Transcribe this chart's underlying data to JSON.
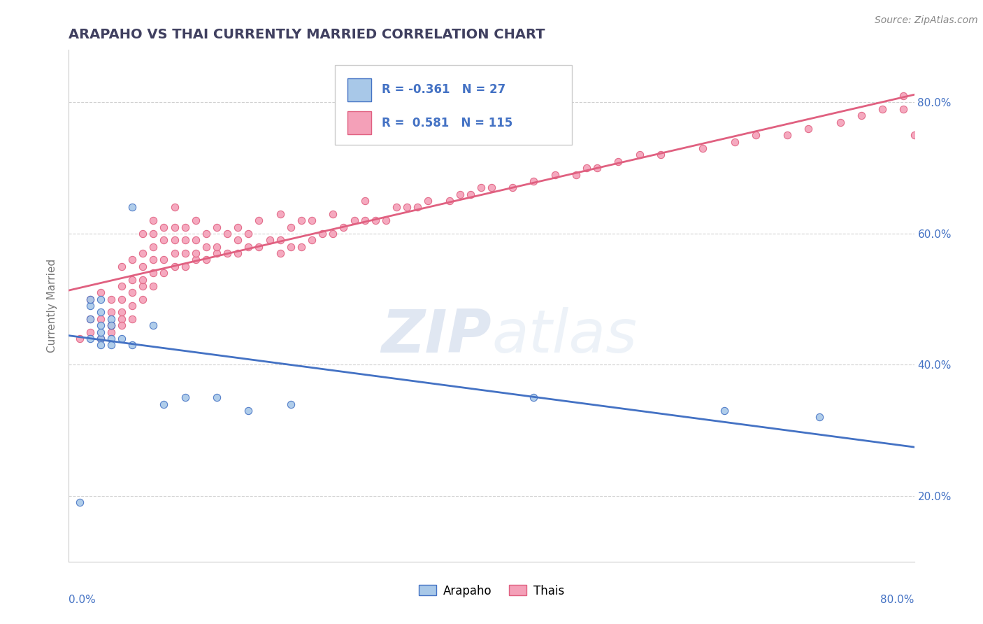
{
  "title": "ARAPAHO VS THAI CURRENTLY MARRIED CORRELATION CHART",
  "source_text": "Source: ZipAtlas.com",
  "ylabel": "Currently Married",
  "watermark_zip": "ZIP",
  "watermark_atlas": "atlas",
  "arapaho_R": -0.361,
  "arapaho_N": 27,
  "thai_R": 0.581,
  "thai_N": 115,
  "arapaho_color": "#a8c8e8",
  "thai_color": "#f4a0b8",
  "arapaho_line_color": "#4472c4",
  "thai_line_color": "#e06080",
  "title_color": "#404060",
  "legend_text_color": "#4472c4",
  "background_color": "#ffffff",
  "grid_color": "#cccccc",
  "xmin": 0.0,
  "xmax": 0.8,
  "ymin": 0.1,
  "ymax": 0.88,
  "right_yticks": [
    0.2,
    0.4,
    0.6,
    0.8
  ],
  "right_ytick_labels": [
    "20.0%",
    "40.0%",
    "60.0%",
    "80.0%"
  ],
  "arapaho_scatter_x": [
    0.01,
    0.02,
    0.02,
    0.02,
    0.02,
    0.03,
    0.03,
    0.03,
    0.03,
    0.03,
    0.03,
    0.04,
    0.04,
    0.04,
    0.04,
    0.05,
    0.06,
    0.06,
    0.08,
    0.09,
    0.11,
    0.14,
    0.17,
    0.21,
    0.44,
    0.62,
    0.71
  ],
  "arapaho_scatter_y": [
    0.19,
    0.47,
    0.49,
    0.5,
    0.44,
    0.48,
    0.5,
    0.46,
    0.44,
    0.43,
    0.45,
    0.47,
    0.44,
    0.46,
    0.43,
    0.44,
    0.43,
    0.64,
    0.46,
    0.34,
    0.35,
    0.35,
    0.33,
    0.34,
    0.35,
    0.33,
    0.32
  ],
  "thai_scatter_x": [
    0.01,
    0.02,
    0.02,
    0.02,
    0.03,
    0.03,
    0.03,
    0.04,
    0.04,
    0.04,
    0.04,
    0.04,
    0.05,
    0.05,
    0.05,
    0.05,
    0.05,
    0.05,
    0.06,
    0.06,
    0.06,
    0.06,
    0.06,
    0.07,
    0.07,
    0.07,
    0.07,
    0.07,
    0.07,
    0.08,
    0.08,
    0.08,
    0.08,
    0.08,
    0.08,
    0.09,
    0.09,
    0.09,
    0.09,
    0.1,
    0.1,
    0.1,
    0.1,
    0.1,
    0.11,
    0.11,
    0.11,
    0.11,
    0.12,
    0.12,
    0.12,
    0.12,
    0.13,
    0.13,
    0.13,
    0.14,
    0.14,
    0.14,
    0.15,
    0.15,
    0.16,
    0.16,
    0.16,
    0.17,
    0.17,
    0.18,
    0.18,
    0.19,
    0.2,
    0.2,
    0.2,
    0.21,
    0.21,
    0.22,
    0.22,
    0.23,
    0.23,
    0.24,
    0.25,
    0.25,
    0.26,
    0.27,
    0.28,
    0.28,
    0.29,
    0.3,
    0.31,
    0.32,
    0.33,
    0.34,
    0.36,
    0.37,
    0.38,
    0.39,
    0.4,
    0.42,
    0.44,
    0.46,
    0.48,
    0.49,
    0.5,
    0.52,
    0.54,
    0.56,
    0.6,
    0.63,
    0.65,
    0.68,
    0.7,
    0.73,
    0.75,
    0.77,
    0.79,
    0.79,
    0.8
  ],
  "thai_scatter_y": [
    0.44,
    0.47,
    0.45,
    0.5,
    0.44,
    0.47,
    0.51,
    0.45,
    0.46,
    0.48,
    0.5,
    0.46,
    0.47,
    0.48,
    0.5,
    0.52,
    0.46,
    0.55,
    0.47,
    0.49,
    0.51,
    0.53,
    0.56,
    0.5,
    0.52,
    0.53,
    0.55,
    0.57,
    0.6,
    0.52,
    0.54,
    0.56,
    0.58,
    0.6,
    0.62,
    0.54,
    0.56,
    0.59,
    0.61,
    0.55,
    0.57,
    0.59,
    0.61,
    0.64,
    0.55,
    0.57,
    0.59,
    0.61,
    0.56,
    0.57,
    0.59,
    0.62,
    0.56,
    0.58,
    0.6,
    0.57,
    0.58,
    0.61,
    0.57,
    0.6,
    0.57,
    0.59,
    0.61,
    0.58,
    0.6,
    0.58,
    0.62,
    0.59,
    0.57,
    0.59,
    0.63,
    0.58,
    0.61,
    0.58,
    0.62,
    0.59,
    0.62,
    0.6,
    0.6,
    0.63,
    0.61,
    0.62,
    0.62,
    0.65,
    0.62,
    0.62,
    0.64,
    0.64,
    0.64,
    0.65,
    0.65,
    0.66,
    0.66,
    0.67,
    0.67,
    0.67,
    0.68,
    0.69,
    0.69,
    0.7,
    0.7,
    0.71,
    0.72,
    0.72,
    0.73,
    0.74,
    0.75,
    0.75,
    0.76,
    0.77,
    0.78,
    0.79,
    0.79,
    0.81,
    0.75
  ]
}
